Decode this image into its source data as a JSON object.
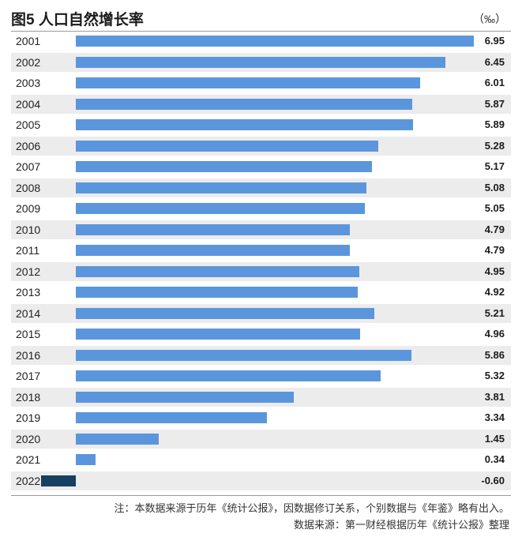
{
  "title": "图5 人口自然增长率",
  "unit": "（‰）",
  "notes": [
    "注：本数据来源于历年《统计公报》，因数据修订关系，个别数据与《年鉴》略有出入。",
    "数据来源：第一财经根据历年《统计公报》整理"
  ],
  "colors": {
    "positive_bar": "#5b96dd",
    "negative_bar": "#173f62",
    "stripe": "#ececec"
  },
  "chart_data": {
    "type": "bar",
    "orientation": "horizontal",
    "title": "图5 人口自然增长率",
    "unit": "‰",
    "categories": [
      "2001",
      "2002",
      "2003",
      "2004",
      "2005",
      "2006",
      "2007",
      "2008",
      "2009",
      "2010",
      "2011",
      "2012",
      "2013",
      "2014",
      "2015",
      "2016",
      "2017",
      "2018",
      "2019",
      "2020",
      "2021",
      "2022"
    ],
    "values": [
      6.95,
      6.45,
      6.01,
      5.87,
      5.89,
      5.28,
      5.17,
      5.08,
      5.05,
      4.79,
      4.79,
      4.95,
      4.92,
      5.21,
      4.96,
      5.86,
      5.32,
      3.81,
      3.34,
      1.45,
      0.34,
      -0.6
    ],
    "value_labels": [
      "6.95",
      "6.45",
      "6.01",
      "5.87",
      "5.89",
      "5.28",
      "5.17",
      "5.08",
      "5.05",
      "4.79",
      "4.79",
      "4.95",
      "4.92",
      "5.21",
      "4.96",
      "5.86",
      "5.32",
      "3.81",
      "3.34",
      "1.45",
      "0.34",
      "-0.60"
    ],
    "xlim": [
      -0.6,
      6.95
    ],
    "grid": false,
    "legend": "none"
  }
}
